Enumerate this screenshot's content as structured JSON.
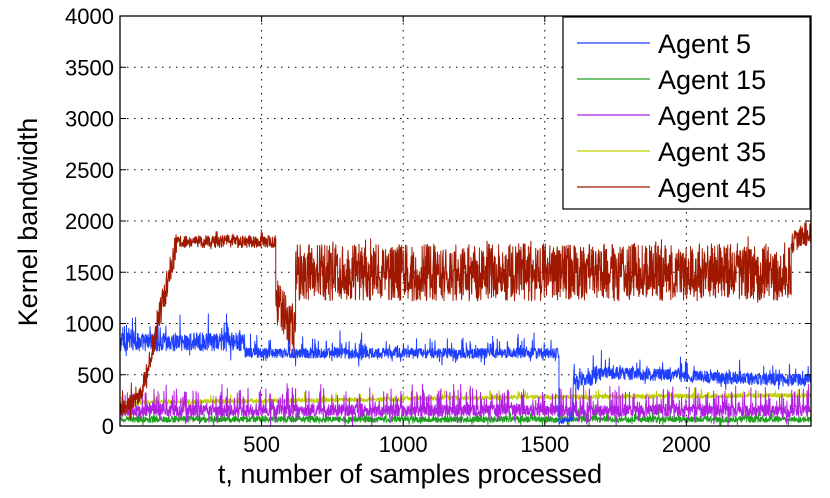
{
  "chart_data": {
    "type": "line",
    "title": "",
    "xlabel": "t, number of samples processed",
    "ylabel": "Kernel bandwidth",
    "xlim": [
      0,
      2440
    ],
    "ylim": [
      0,
      4000
    ],
    "xticks": [
      500,
      1000,
      1500,
      2000
    ],
    "yticks": [
      0,
      500,
      1000,
      1500,
      2000,
      2500,
      3000,
      3500,
      4000
    ],
    "xtick_labels": [
      "500",
      "1000",
      "1500",
      "2000"
    ],
    "ytick_labels": [
      "0",
      "500",
      "1000",
      "1500",
      "2000",
      "2500",
      "3000",
      "3500",
      "4000"
    ],
    "grid": true,
    "legend_position": "top-right",
    "series": [
      {
        "name": "Agent 5",
        "color": "#1f3fff",
        "segments": [
          {
            "t": [
              0,
              5
            ],
            "level": [
              700,
              820
            ],
            "noise": 150,
            "spike": 0.1,
            "spikeAmp": 220
          },
          {
            "t": [
              5,
              440
            ],
            "level": [
              820,
              820
            ],
            "noise": 90,
            "spike": 0.1,
            "spikeAmp": 230
          },
          {
            "t": [
              440,
              1550
            ],
            "level": [
              710,
              710
            ],
            "noise": 50,
            "spike": 0.14,
            "spikeAmp": 170
          },
          {
            "t": [
              1550,
              1600
            ],
            "level": [
              40,
              70
            ],
            "noise": 25,
            "spike": 0.04,
            "spikeAmp": 80
          },
          {
            "t": [
              1600,
              1700
            ],
            "level": [
              420,
              520
            ],
            "noise": 90,
            "spike": 0.1,
            "spikeAmp": 230
          },
          {
            "t": [
              1700,
              2440
            ],
            "level": [
              520,
              440
            ],
            "noise": 60,
            "spike": 0.1,
            "spikeAmp": 130
          }
        ]
      },
      {
        "name": "Agent 15",
        "color": "#1fa01f",
        "segments": [
          {
            "t": [
              0,
              2440
            ],
            "level": [
              65,
              65
            ],
            "noise": 30,
            "spike": 0.06,
            "spikeAmp": 110
          }
        ]
      },
      {
        "name": "Agent 25",
        "color": "#b020e0",
        "segments": [
          {
            "t": [
              0,
              2440
            ],
            "level": [
              150,
              150
            ],
            "noise": 60,
            "spike": 0.22,
            "spikeAmp": 220
          }
        ]
      },
      {
        "name": "Agent 35",
        "color": "#bdd000",
        "segments": [
          {
            "t": [
              0,
              1000
            ],
            "level": [
              230,
              260
            ],
            "noise": 22,
            "spike": 0.05,
            "spikeAmp": 70
          },
          {
            "t": [
              1000,
              2440
            ],
            "level": [
              270,
              300
            ],
            "noise": 22,
            "spike": 0.05,
            "spikeAmp": 70
          }
        ]
      },
      {
        "name": "Agent 45",
        "color": "#a01800",
        "segments": [
          {
            "t": [
              0,
              80
            ],
            "level": [
              150,
              320
            ],
            "noise": 80,
            "spike": 0.1,
            "spikeAmp": 200
          },
          {
            "t": [
              80,
              200
            ],
            "level": [
              350,
              1800
            ],
            "noise": 150,
            "spike": 0.05,
            "spikeAmp": 200
          },
          {
            "t": [
              200,
              550
            ],
            "level": [
              1800,
              1800
            ],
            "noise": 60,
            "spike": 0.05,
            "spikeAmp": 120
          },
          {
            "t": [
              550,
              620
            ],
            "level": [
              1200,
              900
            ],
            "noise": 250,
            "spike": 0.1,
            "spikeAmp": 500
          },
          {
            "t": [
              620,
              2370
            ],
            "level": [
              1500,
              1500
            ],
            "noise": 280,
            "spike": 0.05,
            "spikeAmp": 100
          },
          {
            "t": [
              2370,
              2440
            ],
            "level": [
              1800,
              1900
            ],
            "noise": 120,
            "spike": 0.05,
            "spikeAmp": 100
          }
        ]
      }
    ]
  }
}
